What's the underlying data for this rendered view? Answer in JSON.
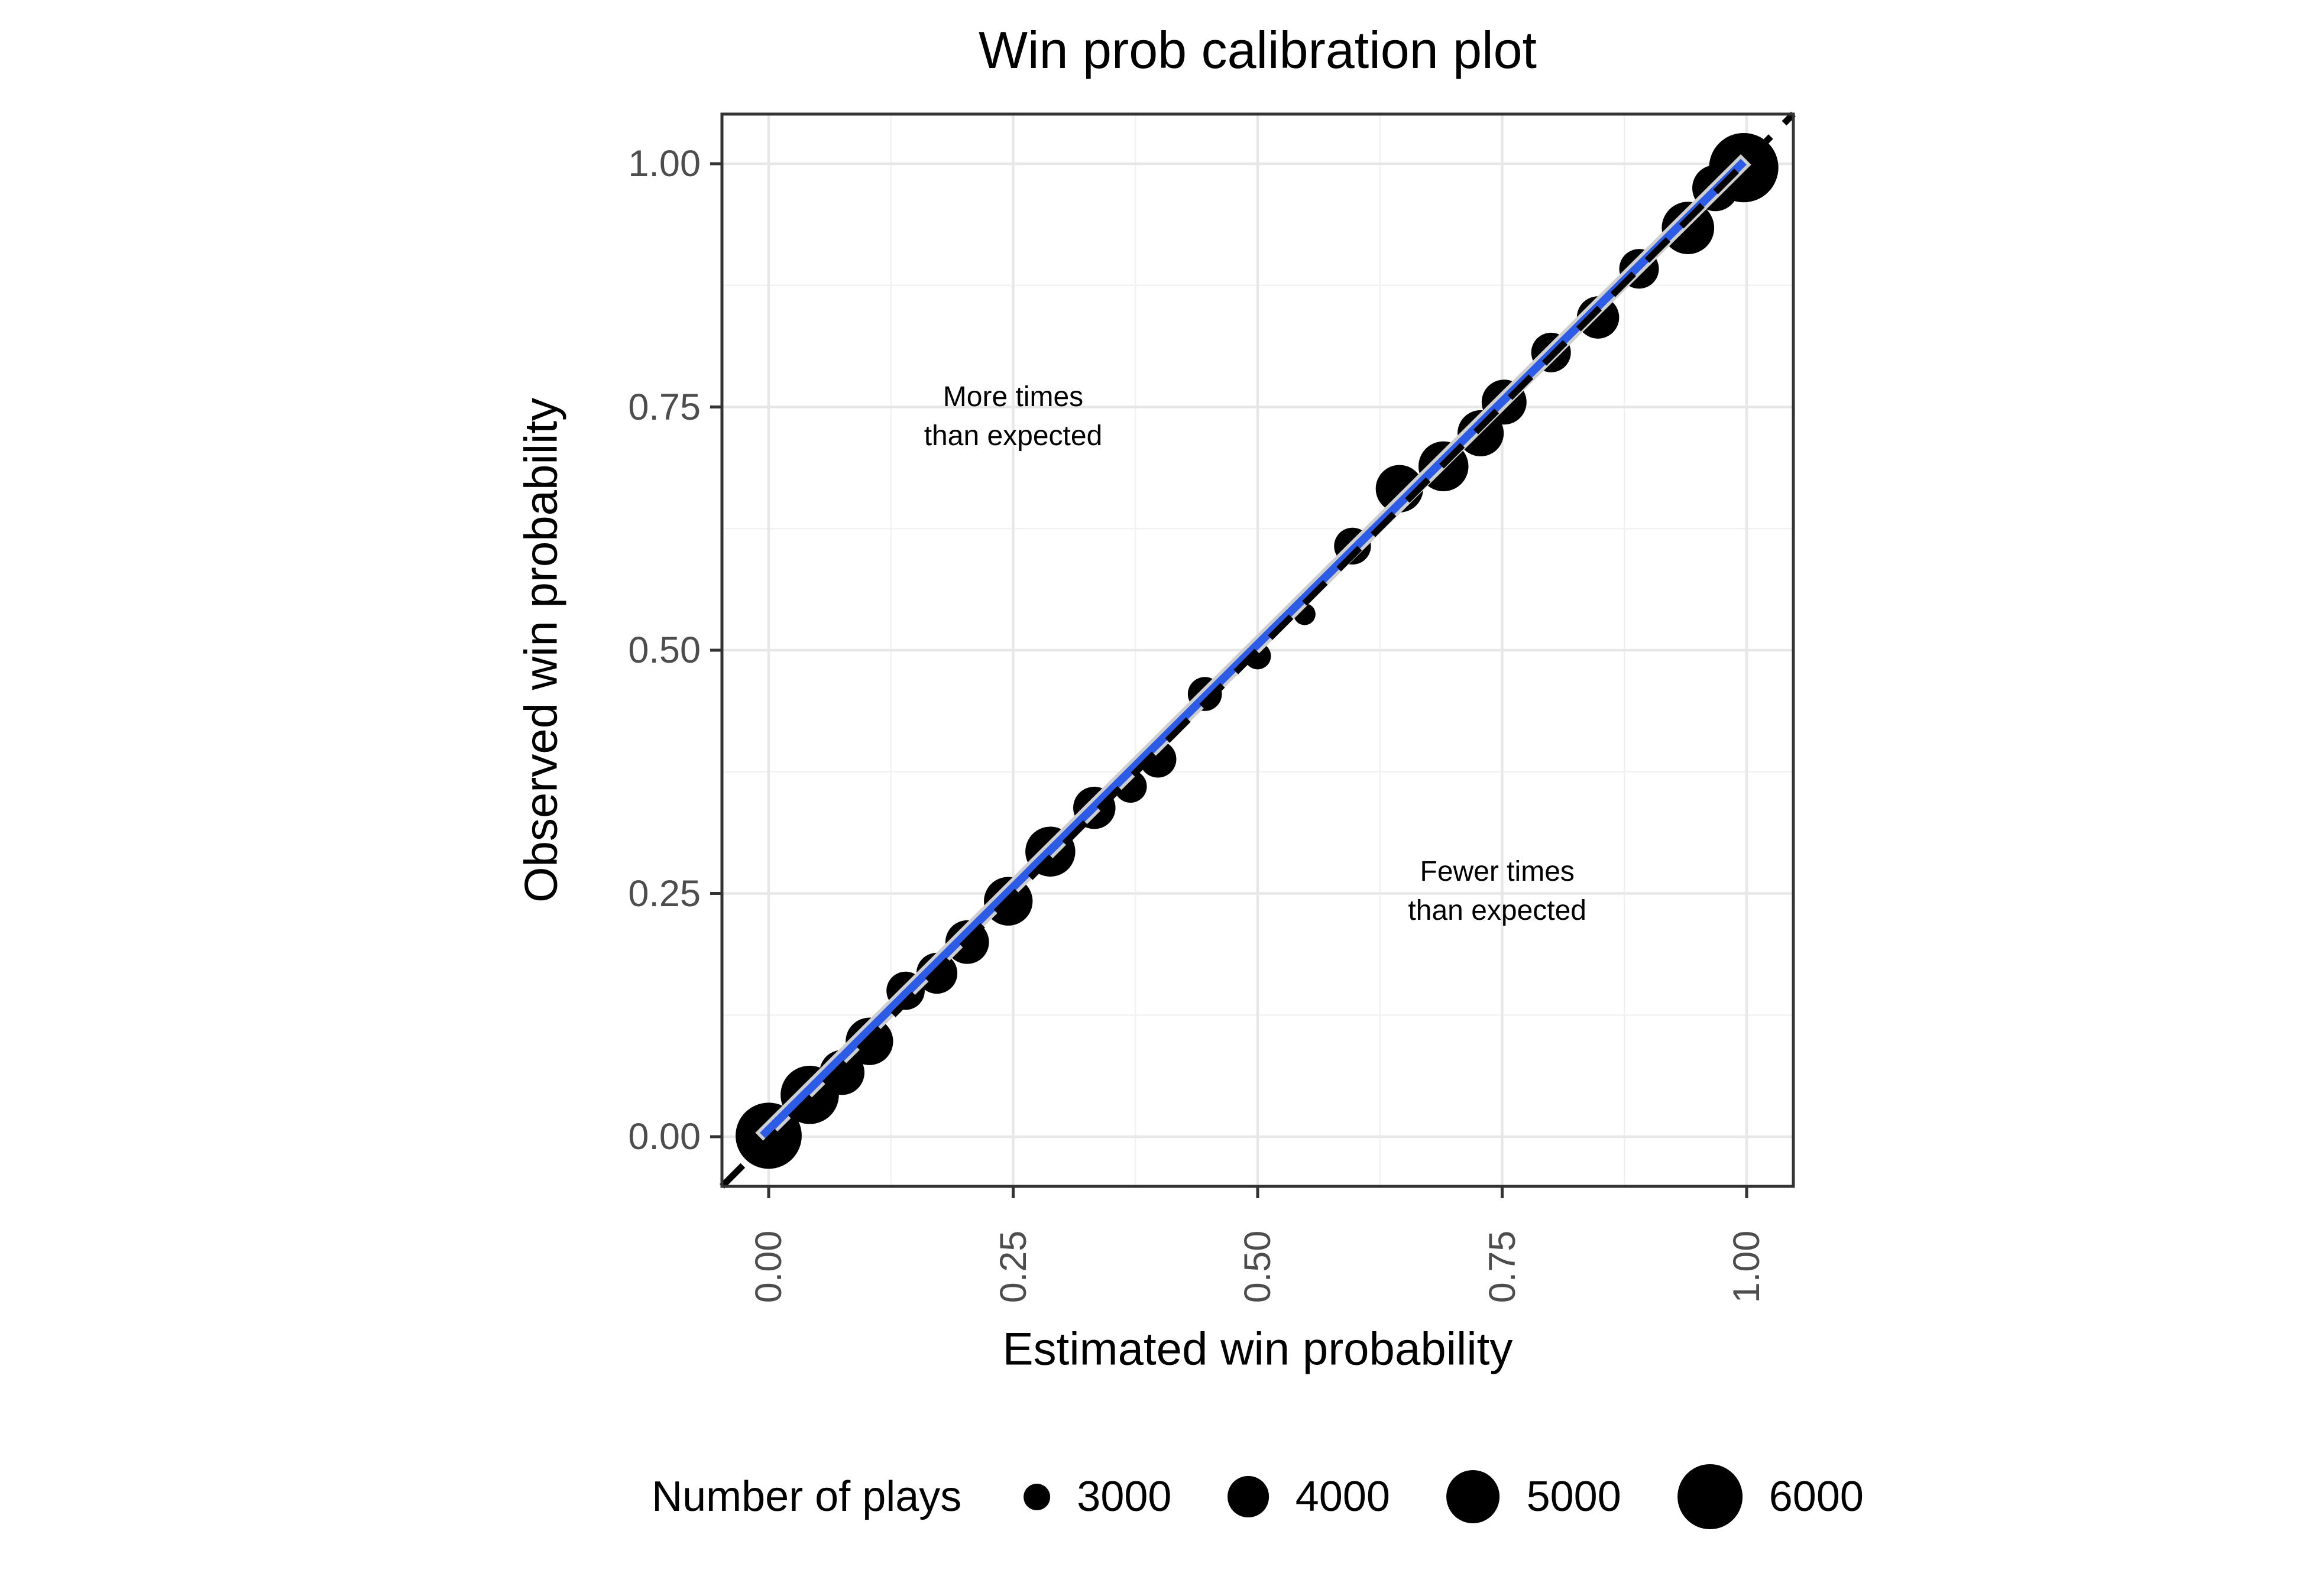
{
  "chart_data": {
    "type": "scatter",
    "title": "Win prob calibration plot",
    "xlabel": "Estimated win probability",
    "ylabel": "Observed win probability",
    "xlim": [
      0,
      1
    ],
    "ylim": [
      0,
      1
    ],
    "x_ticks": {
      "values": [
        0,
        0.25,
        0.5,
        0.75,
        1
      ],
      "labels": [
        "0.00",
        "0.25",
        "0.50",
        "0.75",
        "1.00"
      ],
      "rotation": 90
    },
    "y_ticks": {
      "values": [
        0,
        0.25,
        0.5,
        0.75,
        1
      ],
      "labels": [
        "0.00",
        "0.25",
        "0.50",
        "0.75",
        "1.00"
      ]
    },
    "minor_grid_values": [
      0.125,
      0.375,
      0.625,
      0.875
    ],
    "grid": "on",
    "points_color": "#000000",
    "size_variable": "Number of plays",
    "points": [
      {
        "x": 0.0,
        "y": 0.001,
        "n": 6100
      },
      {
        "x": 0.042,
        "y": 0.043,
        "n": 5400
      },
      {
        "x": 0.075,
        "y": 0.066,
        "n": 4300
      },
      {
        "x": 0.103,
        "y": 0.098,
        "n": 4500
      },
      {
        "x": 0.14,
        "y": 0.15,
        "n": 3800
      },
      {
        "x": 0.172,
        "y": 0.168,
        "n": 4000
      },
      {
        "x": 0.203,
        "y": 0.2,
        "n": 4200
      },
      {
        "x": 0.245,
        "y": 0.242,
        "n": 4600
      },
      {
        "x": 0.288,
        "y": 0.293,
        "n": 4700
      },
      {
        "x": 0.333,
        "y": 0.338,
        "n": 4100
      },
      {
        "x": 0.37,
        "y": 0.36,
        "n": 3400
      },
      {
        "x": 0.398,
        "y": 0.388,
        "n": 3700
      },
      {
        "x": 0.446,
        "y": 0.455,
        "n": 3500
      },
      {
        "x": 0.5,
        "y": 0.494,
        "n": 3000
      },
      {
        "x": 0.548,
        "y": 0.537,
        "n": 2700
      },
      {
        "x": 0.597,
        "y": 0.607,
        "n": 3700
      },
      {
        "x": 0.645,
        "y": 0.666,
        "n": 4500
      },
      {
        "x": 0.69,
        "y": 0.689,
        "n": 4700
      },
      {
        "x": 0.728,
        "y": 0.723,
        "n": 4400
      },
      {
        "x": 0.752,
        "y": 0.755,
        "n": 4300
      },
      {
        "x": 0.8,
        "y": 0.806,
        "n": 3900
      },
      {
        "x": 0.848,
        "y": 0.842,
        "n": 4100
      },
      {
        "x": 0.89,
        "y": 0.892,
        "n": 3900
      },
      {
        "x": 0.94,
        "y": 0.934,
        "n": 4900
      },
      {
        "x": 0.968,
        "y": 0.975,
        "n": 4400
      },
      {
        "x": 0.997,
        "y": 0.996,
        "n": 6400
      }
    ],
    "smooth_line": {
      "color": "#2C5CE6",
      "from": [
        0,
        0.001
      ],
      "to": [
        0.997,
        0.996
      ],
      "style": "solid"
    },
    "identity_line": {
      "color": "#000000",
      "equation": "y = x",
      "style": "dashed"
    },
    "annotations": {
      "more": {
        "lines": [
          "More times",
          "than expected"
        ],
        "x": 0.25,
        "y": 0.74
      },
      "fewer": {
        "lines": [
          "Fewer times",
          "than expected"
        ],
        "x": 0.745,
        "y": 0.252
      }
    },
    "size_legend": {
      "title": "Number of plays",
      "sizes": [
        3000,
        4000,
        5000,
        6000
      ],
      "labels": [
        "3000",
        "4000",
        "5000",
        "6000"
      ],
      "position": "bottom"
    },
    "colors": {
      "point": "#000000",
      "smooth_line": "#2C5CE6",
      "ribbon_edge": "#cfcfcf",
      "identity_line": "#000000",
      "grid_major": "#e7e7e7",
      "grid_minor": "#f2f2f2",
      "panel_border": "#333333",
      "tick_mark": "#333333",
      "tick_text": "#4d4d4d",
      "text": "#000000",
      "background": "#ffffff"
    }
  }
}
